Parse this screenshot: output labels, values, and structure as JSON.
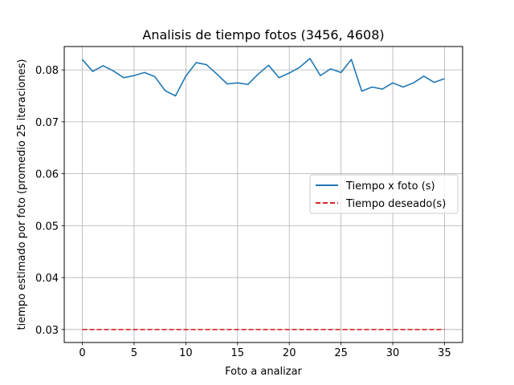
{
  "chart_data": {
    "type": "line",
    "title": "Analisis de tiempo fotos (3456, 4608)",
    "xlabel": "Foto a analizar",
    "ylabel": "tiempo estimado por foto (promedio 25 iteraciones)",
    "xlim": [
      -1.75,
      36.75
    ],
    "ylim": [
      0.0275,
      0.0845
    ],
    "xticks": [
      0,
      5,
      10,
      15,
      20,
      25,
      30,
      35
    ],
    "yticks": [
      0.03,
      0.04,
      0.05,
      0.06,
      0.07,
      0.08
    ],
    "ytick_labels": [
      "0.03",
      "0.04",
      "0.05",
      "0.06",
      "0.07",
      "0.08"
    ],
    "grid": true,
    "legend_position": "center-right",
    "x": [
      0,
      1,
      2,
      3,
      4,
      5,
      6,
      7,
      8,
      9,
      10,
      11,
      12,
      13,
      14,
      15,
      16,
      17,
      18,
      19,
      20,
      21,
      22,
      23,
      24,
      25,
      26,
      27,
      28,
      29,
      30,
      31,
      32,
      33,
      34,
      35
    ],
    "series": [
      {
        "name": "Tiempo x foto (s)",
        "color": "#1f77b4",
        "style": "solid",
        "values": [
          0.082,
          0.0797,
          0.0808,
          0.0798,
          0.0785,
          0.0789,
          0.0795,
          0.0787,
          0.076,
          0.075,
          0.0788,
          0.0814,
          0.081,
          0.0792,
          0.0773,
          0.0775,
          0.0772,
          0.0792,
          0.0809,
          0.0785,
          0.0794,
          0.0805,
          0.0822,
          0.0789,
          0.0802,
          0.0795,
          0.082,
          0.0759,
          0.0767,
          0.0763,
          0.0775,
          0.0767,
          0.0775,
          0.0788,
          0.0776,
          0.0783
        ]
      },
      {
        "name": "Tiempo deseado(s)",
        "color": "#d62728",
        "style": "dashed",
        "values": [
          0.03,
          0.03,
          0.03,
          0.03,
          0.03,
          0.03,
          0.03,
          0.03,
          0.03,
          0.03,
          0.03,
          0.03,
          0.03,
          0.03,
          0.03,
          0.03,
          0.03,
          0.03,
          0.03,
          0.03,
          0.03,
          0.03,
          0.03,
          0.03,
          0.03,
          0.03,
          0.03,
          0.03,
          0.03,
          0.03,
          0.03,
          0.03,
          0.03,
          0.03,
          0.03,
          0.03
        ]
      }
    ]
  }
}
